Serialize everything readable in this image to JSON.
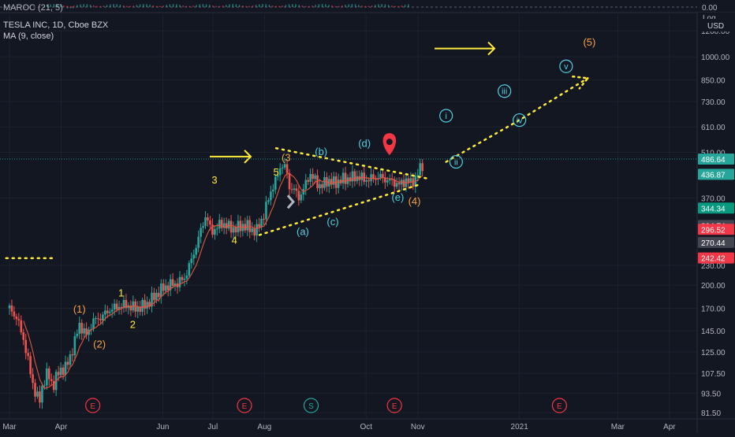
{
  "header": {
    "indicator": "MAROC (21, 5)",
    "symbol": "TESLA INC, 1D, Cboe BZX",
    "ma": "MA (9, close)"
  },
  "indicator_pane": {
    "zero_label": "0.00"
  },
  "price_axis": {
    "currency": "USD",
    "mode": "Log",
    "tick_labels": [
      "1200.00",
      "1000.00",
      "850.00",
      "730.00",
      "610.00",
      "510.00",
      "370.00",
      "230.00",
      "200.00",
      "170.00",
      "145.00",
      "125.00",
      "107.50",
      "93.50",
      "81.50"
    ],
    "tick_values": [
      1200,
      1000,
      850,
      730,
      610,
      510,
      370,
      230,
      200,
      170,
      145,
      125,
      107.5,
      93.5,
      81.5
    ],
    "badges": [
      {
        "label": "486.64",
        "value": 486.64,
        "color": "#26a69a"
      },
      {
        "label": "436.87",
        "value": 436.87,
        "color": "#26a69a"
      },
      {
        "label": "344.34",
        "value": 344.34,
        "color": "#089981"
      },
      {
        "label": "304.74",
        "value": 304.74,
        "color": "#434651"
      },
      {
        "label": "296.52",
        "value": 296.52,
        "color": "#f23645"
      },
      {
        "label": "270.44",
        "value": 270.44,
        "color": "#434651"
      },
      {
        "label": "242.42",
        "value": 242.42,
        "color": "#f23645"
      }
    ]
  },
  "time_axis": {
    "labels": [
      "Mar",
      "Apr",
      "Jun",
      "Jul",
      "Aug",
      "Oct",
      "Nov",
      "2021",
      "Mar",
      "Apr"
    ],
    "days": [
      0,
      31,
      92,
      122,
      153,
      214,
      245,
      306,
      365,
      396
    ]
  },
  "events": [
    {
      "label": "E",
      "day": 50,
      "color": "#f23645"
    },
    {
      "label": "E",
      "day": 141,
      "color": "#f23645"
    },
    {
      "label": "S",
      "day": 181,
      "color": "#26a69a"
    },
    {
      "label": "E",
      "day": 231,
      "color": "#f23645"
    },
    {
      "label": "E",
      "day": 330,
      "color": "#f23645"
    }
  ],
  "annotations": [
    {
      "text": "(1)",
      "day": 42,
      "price": 165,
      "color": "#f7a145"
    },
    {
      "text": "1",
      "day": 67,
      "price": 185,
      "color": "#ffeb3b"
    },
    {
      "text": "2",
      "day": 74,
      "price": 148,
      "color": "#ffeb3b"
    },
    {
      "text": "(2)",
      "day": 54,
      "price": 129,
      "color": "#f7a145"
    },
    {
      "text": "3",
      "day": 123,
      "price": 410,
      "color": "#ffeb3b"
    },
    {
      "text": "4",
      "day": 135,
      "price": 268,
      "color": "#ffeb3b"
    },
    {
      "text": "5",
      "day": 160,
      "price": 433,
      "color": "#ffeb3b"
    },
    {
      "text": "(3",
      "day": 166,
      "price": 480,
      "color": "#f7a145"
    },
    {
      "text": "(b)",
      "day": 187,
      "price": 500,
      "color": "#4dd0e1"
    },
    {
      "text": "(d)",
      "day": 213,
      "price": 530,
      "color": "#4dd0e1"
    },
    {
      "text": "(a)",
      "day": 176,
      "price": 285,
      "color": "#4dd0e1"
    },
    {
      "text": "(c)",
      "day": 194,
      "price": 305,
      "color": "#4dd0e1"
    },
    {
      "text": "(e)",
      "day": 233,
      "price": 363,
      "color": "#4dd0e1"
    },
    {
      "text": "(4)",
      "day": 243,
      "price": 353,
      "color": "#f7a145"
    },
    {
      "text": "(5)",
      "day": 348,
      "price": 1080,
      "color": "#f7a145"
    }
  ],
  "circled_labels": [
    {
      "text": "i",
      "day": 262,
      "price": 660
    },
    {
      "text": "ii",
      "day": 268,
      "price": 477
    },
    {
      "text": "iii",
      "day": 297,
      "price": 785
    },
    {
      "text": "iv",
      "day": 306,
      "price": 640
    },
    {
      "text": "v",
      "day": 334,
      "price": 935
    }
  ],
  "chart_data": {
    "type": "candlestick",
    "title": "TESLA INC, 1D, Cboe BZX",
    "scale": "log",
    "ylim": [
      78,
      1350
    ],
    "xlim_days": [
      0,
      406
    ],
    "x_unit": "trading period (Mar 2020 – Apr 2021)",
    "ma_series_name": "MA (9, close)",
    "price_path": [
      [
        0,
        170
      ],
      [
        4,
        160
      ],
      [
        8,
        140
      ],
      [
        12,
        112
      ],
      [
        15,
        95
      ],
      [
        18,
        88
      ],
      [
        20,
        100
      ],
      [
        23,
        108
      ],
      [
        26,
        98
      ],
      [
        30,
        110
      ],
      [
        34,
        112
      ],
      [
        38,
        128
      ],
      [
        42,
        152
      ],
      [
        46,
        140
      ],
      [
        50,
        155
      ],
      [
        55,
        160
      ],
      [
        60,
        168
      ],
      [
        65,
        172
      ],
      [
        70,
        174
      ],
      [
        75,
        170
      ],
      [
        80,
        172
      ],
      [
        85,
        180
      ],
      [
        90,
        192
      ],
      [
        95,
        200
      ],
      [
        100,
        202
      ],
      [
        105,
        210
      ],
      [
        110,
        245
      ],
      [
        114,
        285
      ],
      [
        118,
        330
      ],
      [
        121,
        290
      ],
      [
        124,
        300
      ],
      [
        128,
        310
      ],
      [
        132,
        300
      ],
      [
        136,
        298
      ],
      [
        140,
        305
      ],
      [
        144,
        300
      ],
      [
        148,
        290
      ],
      [
        150,
        310
      ],
      [
        153,
        330
      ],
      [
        156,
        380
      ],
      [
        160,
        420
      ],
      [
        163,
        470
      ],
      [
        166,
        455
      ],
      [
        168,
        400
      ],
      [
        171,
        390
      ],
      [
        174,
        370
      ],
      [
        178,
        410
      ],
      [
        180,
        440
      ],
      [
        183,
        420
      ],
      [
        187,
        400
      ],
      [
        191,
        420
      ],
      [
        195,
        410
      ],
      [
        199,
        420
      ],
      [
        204,
        425
      ],
      [
        209,
        430
      ],
      [
        214,
        420
      ],
      [
        218,
        425
      ],
      [
        222,
        430
      ],
      [
        226,
        420
      ],
      [
        230,
        415
      ],
      [
        234,
        405
      ],
      [
        238,
        420
      ],
      [
        241,
        410
      ],
      [
        244,
        430
      ],
      [
        248,
        470
      ]
    ]
  }
}
